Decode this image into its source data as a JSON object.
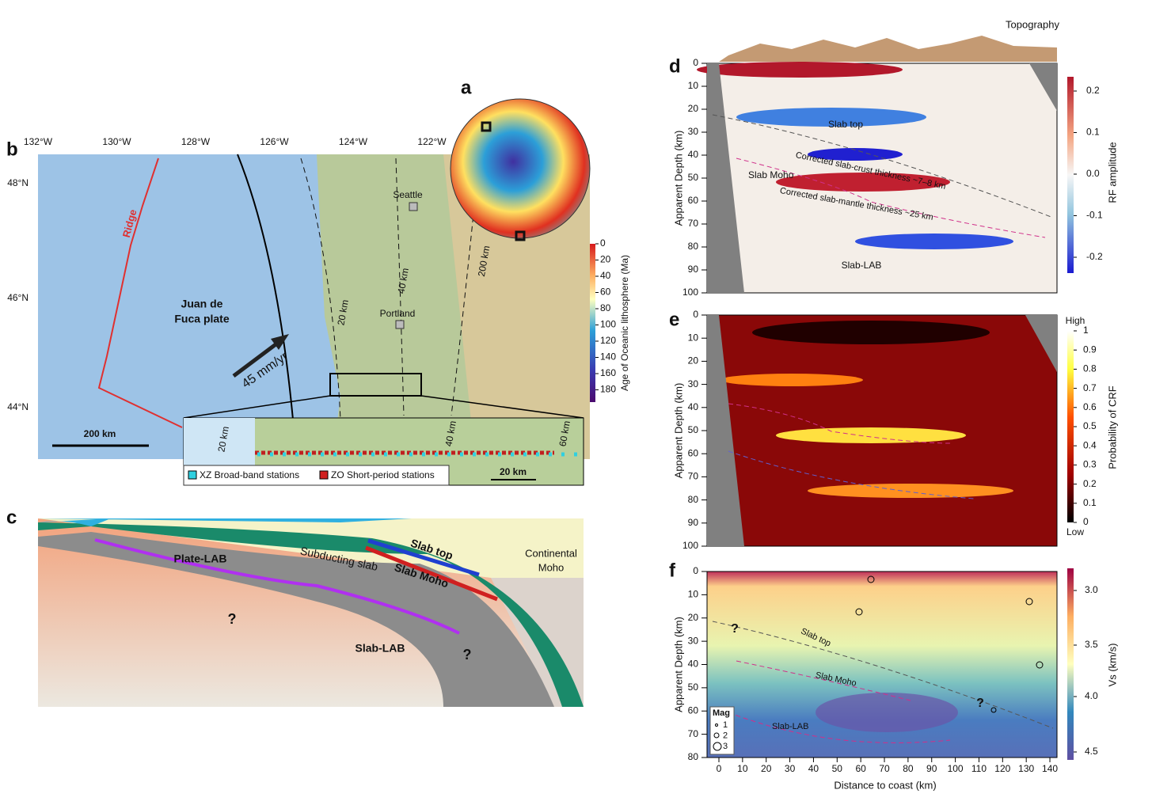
{
  "panel_labels": [
    "a",
    "b",
    "c",
    "d",
    "e",
    "f"
  ],
  "map": {
    "lon_ticks": [
      "132°W",
      "130°W",
      "128°W",
      "126°W",
      "124°W",
      "122°W"
    ],
    "lat_ticks": [
      "48°N",
      "46°N",
      "44°N"
    ],
    "cities": [
      "Seattle",
      "Portland"
    ],
    "ridge": "Ridge",
    "plate": [
      "Juan de",
      "Fuca plate"
    ],
    "velocity": "45 mm/yr",
    "contours": [
      "20 km",
      "40 km",
      "200 km"
    ],
    "scale": "200 km",
    "age_colorbar": {
      "title": "Age of Oceanic lithosphere (Ma)",
      "ticks": [
        "0",
        "20",
        "40",
        "60",
        "80",
        "100",
        "120",
        "140",
        "160",
        "180"
      ]
    }
  },
  "inset": {
    "contours": [
      "20 km",
      "40 km",
      "60 km"
    ],
    "legend": [
      "XZ Broad-band stations",
      "ZO Short-period stations"
    ],
    "scale": "20 km"
  },
  "cross_section": {
    "labels": [
      "Plate-LAB",
      "Subducting slab",
      "Slab top",
      "Slab Moho",
      "Slab-LAB",
      "?",
      "?"
    ],
    "continental_moho": [
      "Continental",
      "Moho"
    ]
  },
  "panel_d": {
    "topography": "Topography",
    "ylabel": "Apparent  Depth (km)",
    "yticks": [
      "0",
      "10",
      "20",
      "30",
      "40",
      "50",
      "60",
      "70",
      "80",
      "90",
      "100"
    ],
    "annotations": [
      "Slab top",
      "Slab Moho",
      "Corrected slab-crust thickness ~7–8 km",
      "Corrected slab-mantle thickness ~25 km",
      "Slab-LAB"
    ],
    "colorbar": {
      "title": "RF amplitude",
      "ticks": [
        "0.2",
        "0.1",
        "0.0",
        "-0.1",
        "-0.2"
      ]
    }
  },
  "panel_e": {
    "ylabel": "Apparent  Depth (km)",
    "yticks": [
      "0",
      "10",
      "20",
      "30",
      "40",
      "50",
      "60",
      "70",
      "80",
      "90",
      "100"
    ],
    "colorbar": {
      "title": "Probability of CRF",
      "ticks": [
        "1",
        "0.9",
        "0.8",
        "0.7",
        "0.6",
        "0.5",
        "0.4",
        "0.3",
        "0.2",
        "0.1",
        "0"
      ],
      "high": "High",
      "low": "Low"
    }
  },
  "panel_f": {
    "ylabel": "Apparent  Depth (km)",
    "yticks": [
      "0",
      "10",
      "20",
      "30",
      "40",
      "50",
      "60",
      "70",
      "80"
    ],
    "xticks": [
      "0",
      "10",
      "20",
      "30",
      "40",
      "50",
      "60",
      "70",
      "80",
      "90",
      "100",
      "110",
      "120",
      "130",
      "140"
    ],
    "xlabel": "Distance to coast (km)",
    "annotations": [
      "Slab top",
      "Slab Moho",
      "Slab-LAB",
      "?",
      "?"
    ],
    "legend": {
      "title": "Mag",
      "items": [
        "1",
        "2",
        "3"
      ]
    },
    "colorbar": {
      "title": "Vs (km/s)",
      "ticks": [
        "3.0",
        "3.5",
        "4.0",
        "4.5"
      ]
    }
  }
}
